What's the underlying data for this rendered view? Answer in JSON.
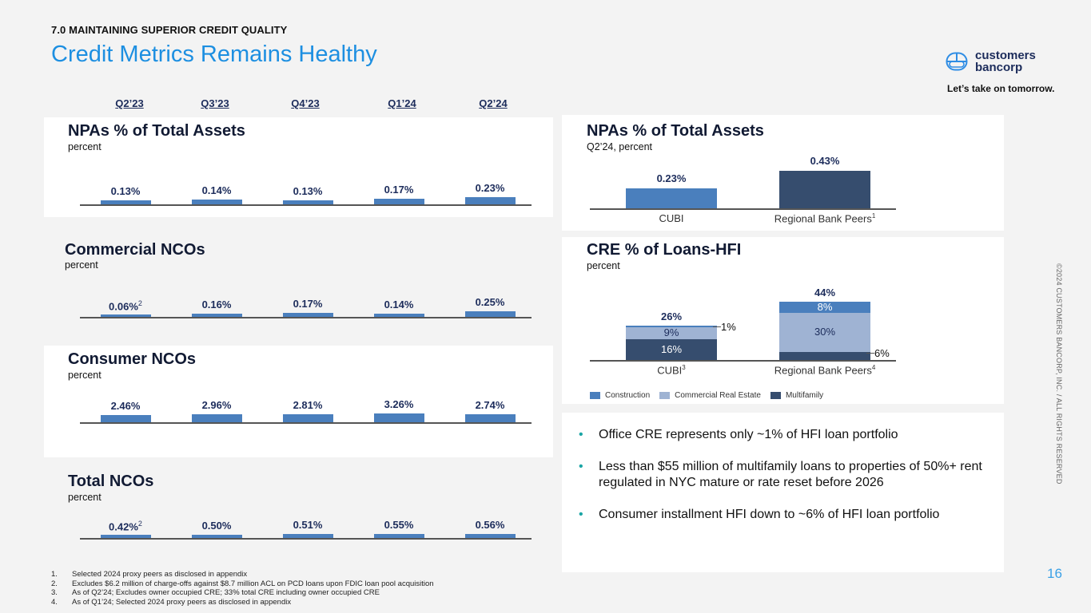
{
  "header": {
    "section_label": "7.0 MAINTAINING SUPERIOR CREDIT QUALITY",
    "title": "Credit Metrics Remains Healthy",
    "brand_line1": "customers",
    "brand_line2": "bancorp",
    "tagline": "Let’s take on tomorrow.",
    "accent_color": "#1d8fe1"
  },
  "quarters": [
    "Q2’23",
    "Q3’23",
    "Q4’23",
    "Q1’24",
    "Q2’24"
  ],
  "chart_data": [
    {
      "id": "npas",
      "type": "bar",
      "title": "NPAs % of Total Assets",
      "subtitle": "percent",
      "categories": [
        "Q2’23",
        "Q3’23",
        "Q4’23",
        "Q1’24",
        "Q2’24"
      ],
      "values": [
        0.13,
        0.14,
        0.13,
        0.17,
        0.23
      ],
      "labels": [
        "0.13%",
        "0.14%",
        "0.13%",
        "0.17%",
        "0.23%"
      ],
      "footnote_marks": [
        "",
        "",
        "",
        "",
        ""
      ],
      "color": "#4a7fbd"
    },
    {
      "id": "commercial_ncos",
      "type": "bar",
      "title": "Commercial NCOs",
      "subtitle": "percent",
      "categories": [
        "Q2’23",
        "Q3’23",
        "Q4’23",
        "Q1’24",
        "Q2’24"
      ],
      "values": [
        0.06,
        0.16,
        0.17,
        0.14,
        0.25
      ],
      "labels": [
        "0.06%",
        "0.16%",
        "0.17%",
        "0.14%",
        "0.25%"
      ],
      "footnote_marks": [
        "2",
        "",
        "",
        "",
        ""
      ],
      "color": "#4a7fbd"
    },
    {
      "id": "consumer_ncos",
      "type": "bar",
      "title": "Consumer NCOs",
      "subtitle": "percent",
      "categories": [
        "Q2’23",
        "Q3’23",
        "Q4’23",
        "Q1’24",
        "Q2’24"
      ],
      "values": [
        2.46,
        2.96,
        2.81,
        3.26,
        2.74
      ],
      "labels": [
        "2.46%",
        "2.96%",
        "2.81%",
        "3.26%",
        "2.74%"
      ],
      "footnote_marks": [
        "",
        "",
        "",
        "",
        ""
      ],
      "color": "#4a7fbd"
    },
    {
      "id": "total_ncos",
      "type": "bar",
      "title": "Total NCOs",
      "subtitle": "percent",
      "categories": [
        "Q2’23",
        "Q3’23",
        "Q4’23",
        "Q1’24",
        "Q2’24"
      ],
      "values": [
        0.42,
        0.5,
        0.51,
        0.55,
        0.56
      ],
      "labels": [
        "0.42%",
        "0.50%",
        "0.51%",
        "0.55%",
        "0.56%"
      ],
      "footnote_marks": [
        "2",
        "",
        "",
        "",
        ""
      ],
      "color": "#4a7fbd"
    },
    {
      "id": "npas_peer",
      "type": "bar",
      "title": "NPAs % of Total Assets",
      "subtitle": "Q2’24, percent",
      "categories": [
        "CUBI",
        "Regional Bank Peers"
      ],
      "category_marks": [
        "",
        "1"
      ],
      "values": [
        0.23,
        0.43
      ],
      "labels": [
        "0.23%",
        "0.43%"
      ],
      "colors": [
        "#4a7fbd",
        "#364d6e"
      ]
    },
    {
      "id": "cre_loans",
      "type": "bar",
      "stacked": true,
      "title": "CRE % of Loans-HFI",
      "subtitle": "percent",
      "categories": [
        "CUBI",
        "Regional Bank Peers"
      ],
      "category_marks": [
        "3",
        "4"
      ],
      "totals": [
        "26%",
        "44%"
      ],
      "series": [
        {
          "name": "Multifamily",
          "values": [
            16,
            6
          ],
          "labels": [
            "16%",
            "6%"
          ],
          "color": "#364d6e"
        },
        {
          "name": "Commercial Real Estate",
          "values": [
            9,
            30
          ],
          "labels": [
            "9%",
            "30%"
          ],
          "color": "#9fb3d3"
        },
        {
          "name": "Construction",
          "values": [
            1,
            8
          ],
          "labels": [
            "1%",
            "8%"
          ],
          "color": "#4a7fbd"
        }
      ],
      "legend": [
        "Construction",
        "Commercial Real Estate",
        "Multifamily"
      ],
      "legend_position": "bottom-left"
    }
  ],
  "bullets": [
    "Office CRE represents only ~1% of HFI loan portfolio",
    "Less than $55 million of multifamily loans to properties of 50%+ rent regulated in NYC mature or rate reset before 2026",
    "Consumer installment HFI down to ~6% of HFI loan portfolio"
  ],
  "footnotes": [
    {
      "num": "1.",
      "text": "Selected 2024 proxy peers as disclosed in appendix"
    },
    {
      "num": "2.",
      "text": "Excludes $6.2 million of charge-offs against $8.7 million ACL on PCD loans upon FDIC loan pool acquisition"
    },
    {
      "num": "3.",
      "text": "As of Q2’24; Excludes owner occupied CRE; 33% total CRE including owner occupied CRE"
    },
    {
      "num": "4.",
      "text": "As of Q1’24; Selected 2024 proxy peers as disclosed in appendix"
    }
  ],
  "copyright": "©2024 CUSTOMERS BANCORP, INC. / ALL RIGHTS RESERVED",
  "page_number": "16"
}
